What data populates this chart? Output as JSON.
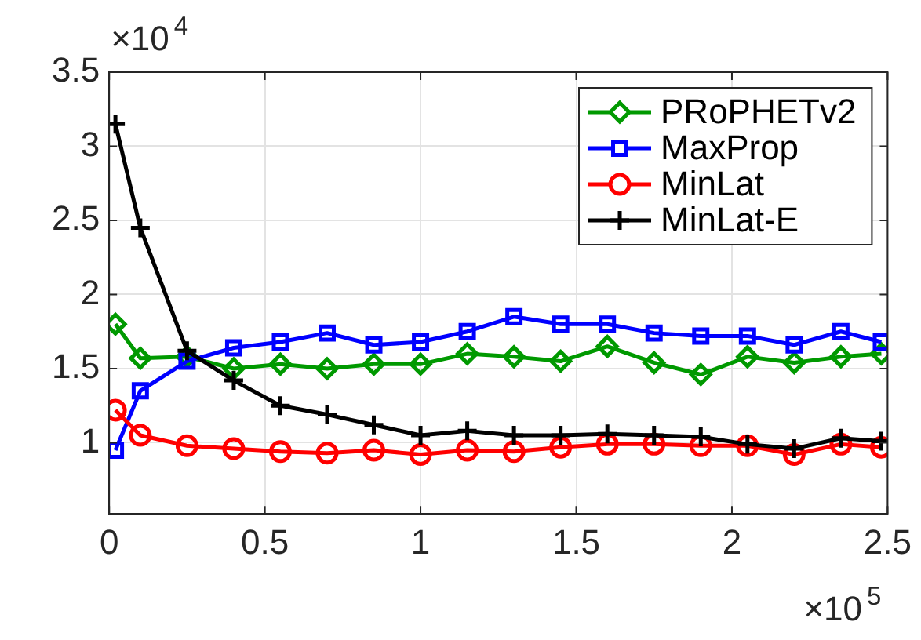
{
  "chart_data": {
    "type": "line",
    "annotations": [
      "×10$^{4}$",
      "×10$^{5}$"
    ],
    "x": [
      0.02,
      0.1,
      0.25,
      0.4,
      0.55,
      0.7,
      0.85,
      1.0,
      1.15,
      1.3,
      1.45,
      1.6,
      1.75,
      1.9,
      2.05,
      2.2,
      2.35,
      2.48
    ],
    "series": [
      {
        "name": "PRoPHETv2",
        "color": "#009900",
        "marker": "diamond",
        "values": [
          1.8,
          1.57,
          1.58,
          1.5,
          1.53,
          1.5,
          1.53,
          1.53,
          1.6,
          1.58,
          1.55,
          1.65,
          1.54,
          1.46,
          1.58,
          1.54,
          1.58,
          1.6
        ]
      },
      {
        "name": "MaxProp",
        "color": "#0000ff",
        "marker": "square",
        "values": [
          0.95,
          1.35,
          1.55,
          1.64,
          1.68,
          1.74,
          1.66,
          1.68,
          1.75,
          1.85,
          1.8,
          1.8,
          1.74,
          1.72,
          1.72,
          1.66,
          1.75,
          1.68
        ]
      },
      {
        "name": "MinLat",
        "color": "#ff0000",
        "marker": "circle",
        "values": [
          1.22,
          1.05,
          0.98,
          0.96,
          0.94,
          0.93,
          0.95,
          0.92,
          0.95,
          0.94,
          0.97,
          0.99,
          0.99,
          0.98,
          0.98,
          0.92,
          0.99,
          0.97
        ]
      },
      {
        "name": "MinLat-E",
        "color": "#000000",
        "marker": "cross",
        "values": [
          3.15,
          2.45,
          1.62,
          1.42,
          1.25,
          1.19,
          1.12,
          1.05,
          1.08,
          1.05,
          1.05,
          1.06,
          1.05,
          1.04,
          0.99,
          0.96,
          1.03,
          1.01
        ]
      }
    ],
    "xlim": [
      0,
      2.5
    ],
    "xticks": [
      0,
      0.5,
      1,
      1.5,
      2,
      2.5
    ],
    "ylim": [
      0.52,
      3.5
    ],
    "yticks": [
      1,
      1.5,
      2,
      2.5,
      3,
      3.5
    ],
    "grid": true,
    "legend": "top right",
    "line_style": "solid"
  }
}
